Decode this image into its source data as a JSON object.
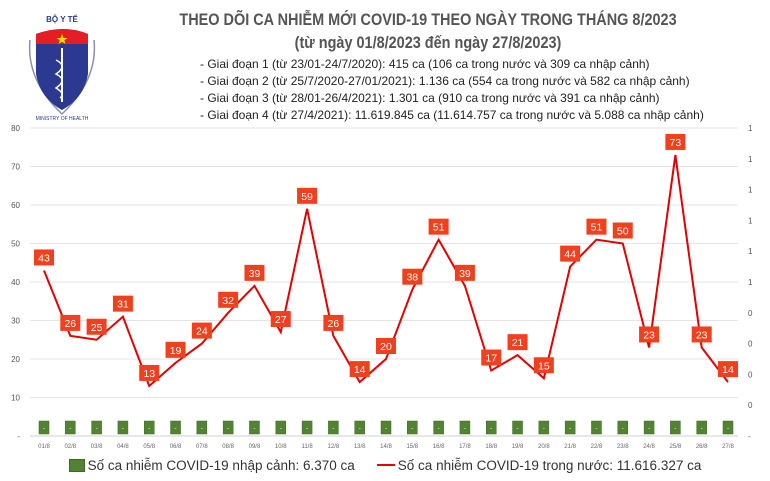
{
  "header": {
    "logo_text": "BỘ Y TẾ",
    "logo_subtext": "MINISTRY OF HEALTH",
    "title": "THEO DÕI CA NHIỄM MỚI COVID-19 THEO NGÀY TRONG THÁNG 8/2023",
    "subtitle": "(từ ngày 01/8/2023 đến ngày 27/8/2023)",
    "notes": [
      "- Giai đoạn 1 (từ 23/01-24/7/2020): 415 ca (106 ca trong nước và 309 ca nhập cảnh)",
      "- Giai đoạn 2 (từ 25/7/2020-27/01/2021): 1.136 ca (554 ca trong nước và 582 ca nhập cảnh)",
      "- Giai đoạn 3 (từ 28/01-26/4/2021): 1.301 ca (910 ca trong nước và 391 ca nhập cảnh)",
      "- Giai đoạn 4 (từ 27/4/2021): 11.619.845 ca (11.614.757 ca trong nước và 5.088 ca nhập cảnh)"
    ]
  },
  "chart_data": {
    "type": "bar+line",
    "categories": [
      "01/8",
      "02/8",
      "03/8",
      "04/8",
      "05/8",
      "06/8",
      "07/8",
      "08/8",
      "09/8",
      "10/8",
      "11/8",
      "12/8",
      "13/8",
      "14/8",
      "15/8",
      "16/8",
      "17/8",
      "18/8",
      "19/8",
      "20/8",
      "21/8",
      "22/8",
      "23/8",
      "24/8",
      "25/8",
      "26/8",
      "27/8"
    ],
    "series": [
      {
        "name": "Số ca nhiễm COVID-19 nhập cảnh: 6.370 ca",
        "type": "bar",
        "axis": "right",
        "color": "#548235",
        "values": [
          0,
          0,
          0,
          0,
          0,
          0,
          0,
          0,
          0,
          0,
          0,
          0,
          0,
          0,
          0,
          0,
          0,
          0,
          0,
          0,
          0,
          0,
          0,
          0,
          0,
          0,
          0
        ],
        "data_label": "-"
      },
      {
        "name": "Số ca nhiễm COVID-19 trong nước: 11.616.327 ca",
        "type": "line",
        "axis": "left",
        "color": "#e00000",
        "values": [
          43,
          26,
          25,
          31,
          13,
          19,
          24,
          32,
          39,
          27,
          59,
          26,
          14,
          20,
          38,
          51,
          39,
          17,
          21,
          15,
          44,
          51,
          50,
          23,
          73,
          23,
          14
        ]
      }
    ],
    "left_axis": {
      "ylim": [
        0,
        80
      ],
      "ticks": [
        "-",
        "10",
        "20",
        "30",
        "40",
        "50",
        "60",
        "70",
        "80"
      ]
    },
    "right_axis": {
      "ylim": [
        0,
        1
      ],
      "ticks": [
        "-",
        "0",
        "0",
        "0",
        "0",
        "1",
        "1",
        "1",
        "1",
        "1",
        "1"
      ]
    },
    "grid": true,
    "legend": "bottom",
    "label_color": "#f0401e"
  }
}
